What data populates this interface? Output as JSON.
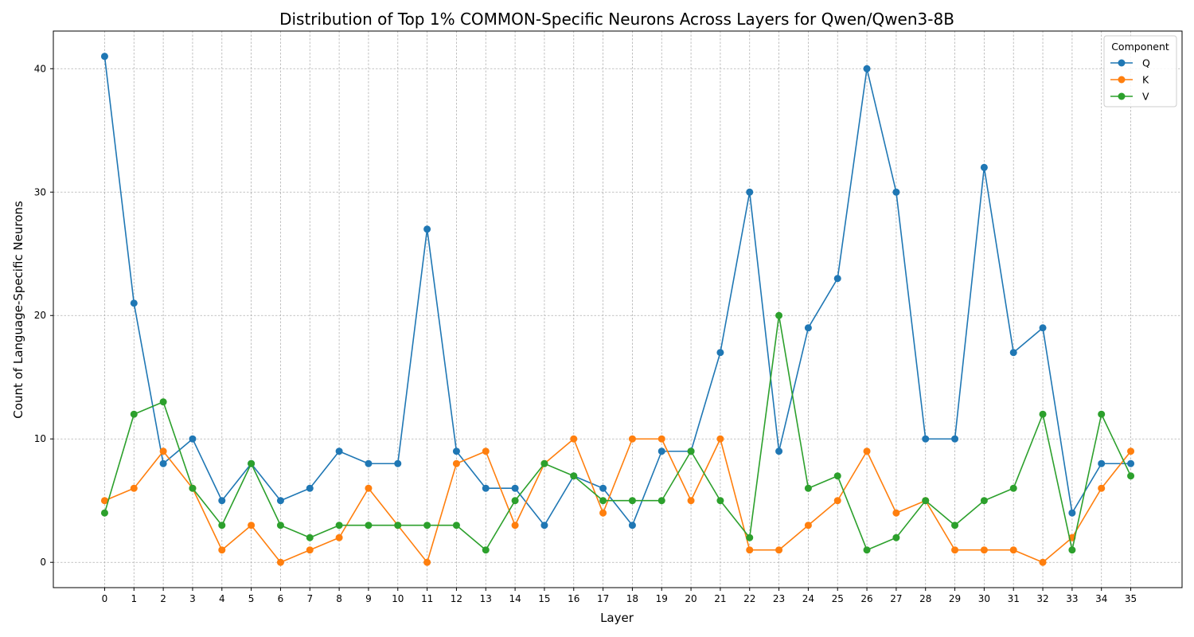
{
  "chart_data": {
    "type": "line",
    "title": "Distribution of Top 1% COMMON-Specific Neurons Across Layers for Qwen/Qwen3-8B",
    "xlabel": "Layer",
    "ylabel": "Count of Language-Specific Neurons",
    "x": [
      0,
      1,
      2,
      3,
      4,
      5,
      6,
      7,
      8,
      9,
      10,
      11,
      12,
      13,
      14,
      15,
      16,
      17,
      18,
      19,
      20,
      21,
      22,
      23,
      24,
      25,
      26,
      27,
      28,
      29,
      30,
      31,
      32,
      33,
      34,
      35
    ],
    "xlim": [
      -1.75,
      36.75
    ],
    "ylim": [
      -2.05,
      43.05
    ],
    "yticks": [
      0,
      10,
      20,
      30,
      40
    ],
    "grid": true,
    "legend": {
      "title": "Component",
      "placement": "top-right"
    },
    "series": [
      {
        "name": "Q",
        "color": "#1f77b4",
        "values": [
          41,
          21,
          8,
          10,
          5,
          8,
          5,
          6,
          9,
          8,
          8,
          27,
          9,
          6,
          6,
          3,
          7,
          6,
          3,
          9,
          9,
          17,
          30,
          9,
          19,
          23,
          40,
          30,
          10,
          10,
          32,
          17,
          19,
          4,
          8,
          8
        ]
      },
      {
        "name": "K",
        "color": "#ff7f0e",
        "values": [
          5,
          6,
          9,
          6,
          1,
          3,
          0,
          1,
          2,
          6,
          3,
          0,
          8,
          9,
          3,
          8,
          10,
          4,
          10,
          10,
          5,
          10,
          1,
          1,
          3,
          5,
          9,
          4,
          5,
          1,
          1,
          1,
          0,
          2,
          6,
          9
        ]
      },
      {
        "name": "V",
        "color": "#2ca02c",
        "values": [
          4,
          12,
          13,
          6,
          3,
          8,
          3,
          2,
          3,
          3,
          3,
          3,
          3,
          1,
          5,
          8,
          7,
          5,
          5,
          5,
          9,
          5,
          2,
          20,
          6,
          7,
          1,
          2,
          5,
          3,
          5,
          6,
          12,
          1,
          12,
          7
        ]
      }
    ]
  }
}
